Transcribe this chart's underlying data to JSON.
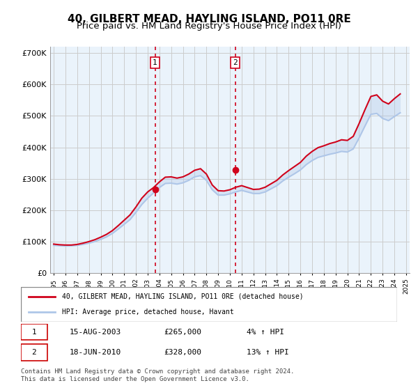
{
  "title": "40, GILBERT MEAD, HAYLING ISLAND, PO11 0RE",
  "subtitle": "Price paid vs. HM Land Registry's House Price Index (HPI)",
  "ylim": [
    0,
    720000
  ],
  "yticks": [
    0,
    100000,
    200000,
    300000,
    400000,
    500000,
    600000,
    700000
  ],
  "ytick_labels": [
    "£0",
    "£100K",
    "£200K",
    "£300K",
    "£400K",
    "£500K",
    "£600K",
    "£700K"
  ],
  "x_start_year": 1995,
  "x_end_year": 2025,
  "sale1_year": 2003.625,
  "sale1_price": 265000,
  "sale1_label": "1",
  "sale2_year": 2010.458,
  "sale2_price": 328000,
  "sale2_label": "2",
  "hpi_color": "#aec6e8",
  "price_color": "#d0021b",
  "sale_line_color": "#d0021b",
  "sale_line_style": "dotted",
  "background_plot": "#eaf3fb",
  "legend_entry1": "40, GILBERT MEAD, HAYLING ISLAND, PO11 0RE (detached house)",
  "legend_entry2": "HPI: Average price, detached house, Havant",
  "table_row1": [
    "1",
    "15-AUG-2003",
    "£265,000",
    "4% ↑ HPI"
  ],
  "table_row2": [
    "2",
    "18-JUN-2010",
    "£328,000",
    "13% ↑ HPI"
  ],
  "footer": "Contains HM Land Registry data © Crown copyright and database right 2024.\nThis data is licensed under the Open Government Licence v3.0.",
  "title_fontsize": 11,
  "subtitle_fontsize": 9.5,
  "hpi_data_x": [
    1995,
    1995.5,
    1996,
    1996.5,
    1997,
    1997.5,
    1998,
    1998.5,
    1999,
    1999.5,
    2000,
    2000.5,
    2001,
    2001.5,
    2002,
    2002.5,
    2003,
    2003.5,
    2004,
    2004.5,
    2005,
    2005.5,
    2006,
    2006.5,
    2007,
    2007.5,
    2008,
    2008.5,
    2009,
    2009.5,
    2010,
    2010.5,
    2011,
    2011.5,
    2012,
    2012.5,
    2013,
    2013.5,
    2014,
    2014.5,
    2015,
    2015.5,
    2016,
    2016.5,
    2017,
    2017.5,
    2018,
    2018.5,
    2019,
    2019.5,
    2020,
    2020.5,
    2021,
    2021.5,
    2022,
    2022.5,
    2023,
    2023.5,
    2024,
    2024.5
  ],
  "hpi_data_y": [
    88000,
    87000,
    86000,
    86500,
    88000,
    91000,
    95000,
    100000,
    107000,
    115000,
    126000,
    140000,
    155000,
    170000,
    193000,
    218000,
    238000,
    255000,
    272000,
    285000,
    286000,
    283000,
    287000,
    295000,
    306000,
    310000,
    295000,
    265000,
    248000,
    248000,
    252000,
    258000,
    263000,
    258000,
    253000,
    253000,
    258000,
    268000,
    278000,
    293000,
    305000,
    316000,
    328000,
    345000,
    358000,
    368000,
    373000,
    378000,
    382000,
    387000,
    385000,
    395000,
    430000,
    468000,
    505000,
    508000,
    492000,
    485000,
    498000,
    510000
  ],
  "price_data_x": [
    1995,
    1995.5,
    1996,
    1996.5,
    1997,
    1997.5,
    1998,
    1998.5,
    1999,
    1999.5,
    2000,
    2000.5,
    2001,
    2001.5,
    2002,
    2002.5,
    2003,
    2003.5,
    2004,
    2004.5,
    2005,
    2005.5,
    2006,
    2006.5,
    2007,
    2007.5,
    2008,
    2008.5,
    2009,
    2009.5,
    2010,
    2010.5,
    2011,
    2011.5,
    2012,
    2012.5,
    2013,
    2013.5,
    2014,
    2014.5,
    2015,
    2015.5,
    2016,
    2016.5,
    2017,
    2017.5,
    2018,
    2018.5,
    2019,
    2019.5,
    2020,
    2020.5,
    2021,
    2021.5,
    2022,
    2022.5,
    2023,
    2023.5,
    2024,
    2024.5
  ],
  "price_data_y": [
    92000,
    90000,
    89000,
    89000,
    91000,
    95000,
    100000,
    106000,
    114000,
    123000,
    135000,
    151000,
    168000,
    185000,
    210000,
    238000,
    258000,
    272000,
    290000,
    305000,
    306000,
    302000,
    306000,
    315000,
    327000,
    332000,
    315000,
    280000,
    262000,
    261000,
    265000,
    273000,
    278000,
    272000,
    266000,
    267000,
    273000,
    284000,
    295000,
    312000,
    326000,
    339000,
    352000,
    372000,
    387000,
    399000,
    405000,
    412000,
    417000,
    424000,
    422000,
    435000,
    476000,
    520000,
    562000,
    567000,
    547000,
    538000,
    555000,
    570000
  ]
}
